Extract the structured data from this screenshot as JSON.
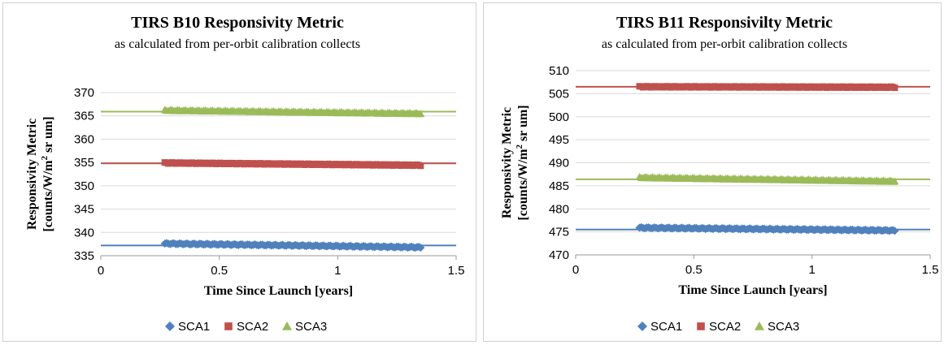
{
  "chart_data": [
    {
      "type": "scatter",
      "title": "TIRS B10 Responsivity Metric",
      "subtitle": "as calculated from per-orbit calibration collects",
      "xlabel": "Time Since Launch [years]",
      "ylabel_line1": "Responsivity Metric",
      "ylabel_line2": "[counts/W/m",
      "ylabel_sup": "2",
      "ylabel_line2_end": " sr um]",
      "xlim": [
        0,
        1.5
      ],
      "ylim": [
        335,
        370
      ],
      "xticks": [
        0,
        0.5,
        1,
        1.5
      ],
      "xtick_labels": [
        "0",
        "0.5",
        "1",
        "1.5"
      ],
      "yticks": [
        335,
        340,
        345,
        350,
        355,
        360,
        365,
        370
      ],
      "ytick_labels": [
        "335",
        "340",
        "345",
        "350",
        "355",
        "360",
        "365",
        "370"
      ],
      "grid": true,
      "legend_position": "bottom-center",
      "series": [
        {
          "name": "SCA1",
          "color": "#4f81bd",
          "marker": "diamond",
          "x_range": [
            0.27,
            1.35
          ],
          "y_start": 337.6,
          "y_end": 336.8,
          "reference": 337.2
        },
        {
          "name": "SCA2",
          "color": "#c0504d",
          "marker": "square",
          "x_range": [
            0.27,
            1.35
          ],
          "y_start": 354.9,
          "y_end": 354.4,
          "reference": 354.8
        },
        {
          "name": "SCA3",
          "color": "#9bbb59",
          "marker": "triangle",
          "x_range": [
            0.27,
            1.35
          ],
          "y_start": 366.2,
          "y_end": 365.5,
          "reference": 365.9
        }
      ]
    },
    {
      "type": "scatter",
      "title": "TIRS B11 Responsivilty Metric",
      "subtitle": "as calculated from per-orbit calibration collects",
      "xlabel": "Time Since Launch [years]",
      "ylabel_line1": "Responsivity Metric",
      "ylabel_line2": "[counts/W/m",
      "ylabel_sup": "2",
      "ylabel_line2_end": " sr um]",
      "xlim": [
        0,
        1.5
      ],
      "ylim": [
        470,
        510
      ],
      "xticks": [
        0,
        0.5,
        1,
        1.5
      ],
      "xtick_labels": [
        "0",
        "0.5",
        "1",
        "1.5"
      ],
      "yticks": [
        470,
        475,
        480,
        485,
        490,
        495,
        500,
        505,
        510
      ],
      "ytick_labels": [
        "470",
        "475",
        "480",
        "485",
        "490",
        "495",
        "500",
        "505",
        "510"
      ],
      "grid": true,
      "legend_position": "bottom-center",
      "series": [
        {
          "name": "SCA1",
          "color": "#4f81bd",
          "marker": "diamond",
          "x_range": [
            0.27,
            1.35
          ],
          "y_start": 475.9,
          "y_end": 475.3,
          "reference": 475.5
        },
        {
          "name": "SCA2",
          "color": "#c0504d",
          "marker": "square",
          "x_range": [
            0.27,
            1.35
          ],
          "y_start": 506.5,
          "y_end": 506.4,
          "reference": 506.5
        },
        {
          "name": "SCA3",
          "color": "#9bbb59",
          "marker": "triangle",
          "x_range": [
            0.27,
            1.35
          ],
          "y_start": 486.8,
          "y_end": 486.0,
          "reference": 486.4
        }
      ]
    }
  ]
}
